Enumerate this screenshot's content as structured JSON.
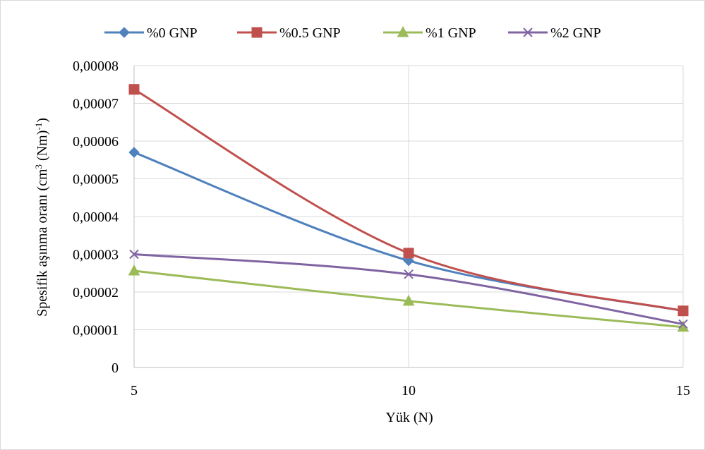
{
  "chart_data": {
    "type": "line",
    "x": [
      5,
      10,
      15
    ],
    "xlim": [
      5,
      15
    ],
    "ylim": [
      0,
      8e-05
    ],
    "x_ticks": [
      "5",
      "10",
      "15"
    ],
    "y_ticks": [
      "0",
      "0,00001",
      "0,00002",
      "0,00003",
      "0,00004",
      "0,00005",
      "0,00006",
      "0,00007",
      "0,00008"
    ],
    "xlabel": "Yük (N)",
    "ylabel_parts": {
      "base": "Spesifik aşınma oranı  (cm",
      "sup1": "3",
      "mid": " (Nm)",
      "sup2": "-1",
      "end": ")"
    },
    "legend_position": "top",
    "grid": true,
    "series": [
      {
        "name": "%0 GNP",
        "values": [
          5.7e-05,
          2.83e-05,
          1.5e-05
        ],
        "color": "#4f81bd",
        "marker": "diamond"
      },
      {
        "name": "%0.5 GNP",
        "values": [
          7.37e-05,
          3.03e-05,
          1.5e-05
        ],
        "color": "#c0504d",
        "marker": "square"
      },
      {
        "name": "%1 GNP",
        "values": [
          2.56e-05,
          1.76e-05,
          1.07e-05
        ],
        "color": "#9bbb59",
        "marker": "triangle"
      },
      {
        "name": "%2 GNP",
        "values": [
          3e-05,
          2.47e-05,
          1.15e-05
        ],
        "color": "#8064a2",
        "marker": "x"
      }
    ]
  }
}
